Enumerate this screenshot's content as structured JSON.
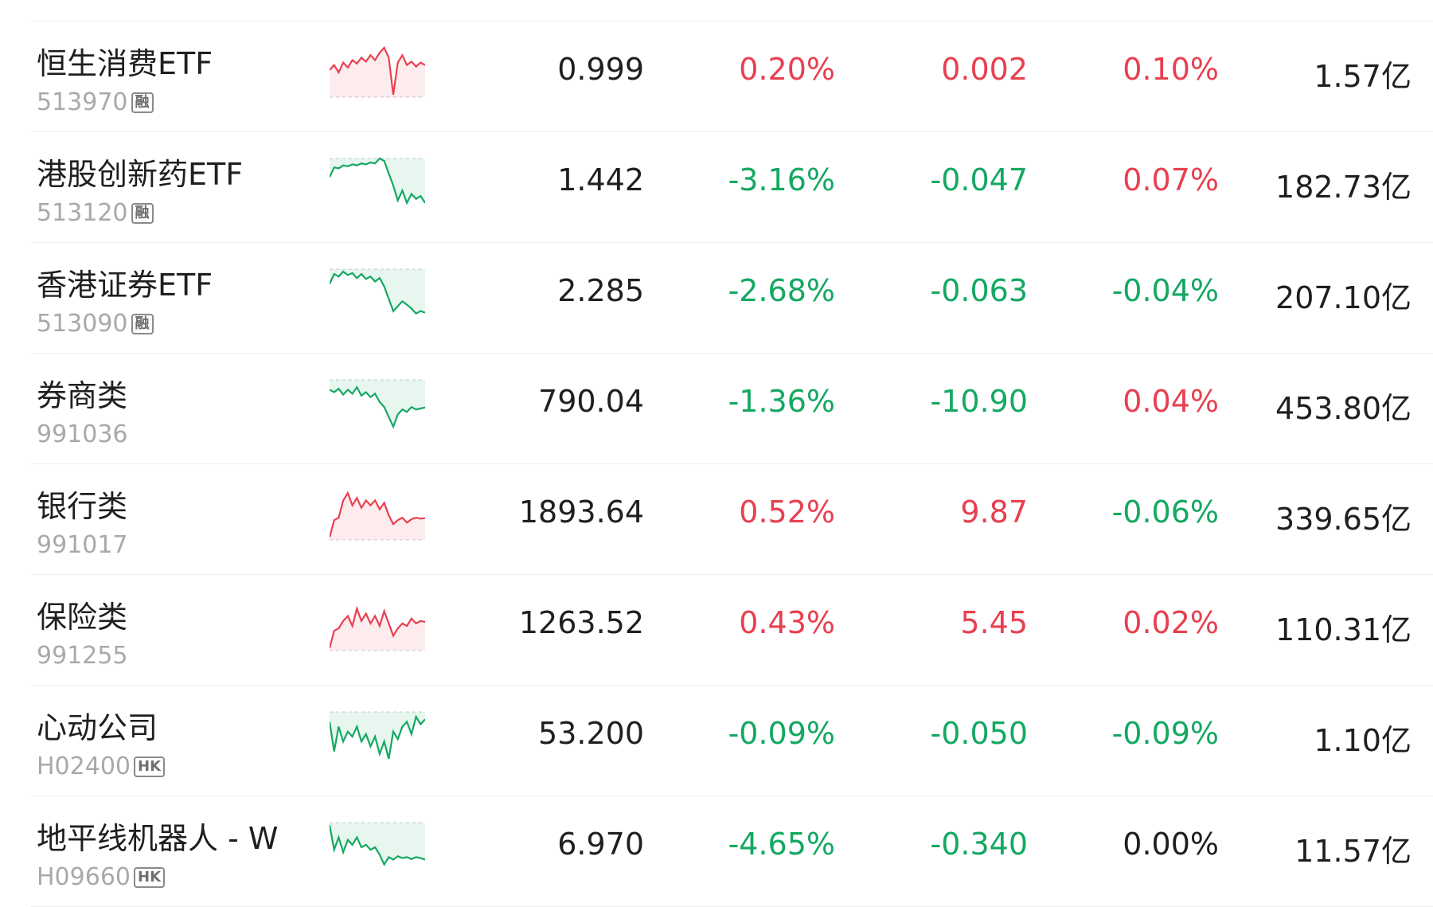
{
  "colors": {
    "up": "#e84050",
    "down": "#14a862",
    "neutral": "#1f1f1f",
    "subtext": "#a9a9a9"
  },
  "rows": [
    {
      "name": "恒生消费ETF",
      "code": "513970",
      "badge": "融",
      "price": "0.999",
      "change_pct": "0.20%",
      "change": "0.002",
      "speed": "0.10%",
      "amount": "1.57亿",
      "dir_pct": "up",
      "dir_chg": "up",
      "dir_spd": "up",
      "spark": {
        "trend": "up",
        "points": [
          0.45,
          0.35,
          0.5,
          0.3,
          0.4,
          0.25,
          0.32,
          0.2,
          0.28,
          0.15,
          0.25,
          0.1,
          0.0,
          0.2,
          0.95,
          0.3,
          0.15,
          0.35,
          0.28,
          0.38,
          0.3,
          0.35
        ]
      }
    },
    {
      "name": "港股创新药ETF",
      "code": "513120",
      "badge": "融",
      "price": "1.442",
      "change_pct": "-3.16%",
      "change": "-0.047",
      "speed": "0.07%",
      "amount": "182.73亿",
      "dir_pct": "down",
      "dir_chg": "down",
      "dir_spd": "up",
      "spark": {
        "trend": "down",
        "points": [
          0.38,
          0.18,
          0.2,
          0.14,
          0.16,
          0.12,
          0.14,
          0.1,
          0.12,
          0.08,
          0.1,
          0.0,
          0.05,
          0.3,
          0.55,
          0.85,
          0.65,
          0.9,
          0.72,
          0.82,
          0.76,
          0.9
        ]
      }
    },
    {
      "name": "香港证券ETF",
      "code": "513090",
      "badge": "融",
      "price": "2.285",
      "change_pct": "-2.68%",
      "change": "-0.063",
      "speed": "-0.04%",
      "amount": "207.10亿",
      "dir_pct": "down",
      "dir_chg": "down",
      "dir_spd": "down",
      "spark": {
        "trend": "down",
        "points": [
          0.3,
          0.1,
          0.15,
          0.05,
          0.12,
          0.08,
          0.18,
          0.1,
          0.2,
          0.15,
          0.25,
          0.18,
          0.35,
          0.6,
          0.85,
          0.75,
          0.65,
          0.72,
          0.8,
          0.9,
          0.85,
          0.88
        ]
      }
    },
    {
      "name": "券商类",
      "code": "991036",
      "badge": "",
      "price": "790.04",
      "change_pct": "-1.36%",
      "change": "-10.90",
      "speed": "0.04%",
      "amount": "453.80亿",
      "dir_pct": "down",
      "dir_chg": "down",
      "dir_spd": "up",
      "spark": {
        "trend": "down",
        "points": [
          0.2,
          0.25,
          0.18,
          0.3,
          0.2,
          0.28,
          0.15,
          0.32,
          0.25,
          0.35,
          0.28,
          0.45,
          0.55,
          0.75,
          0.95,
          0.7,
          0.6,
          0.65,
          0.55,
          0.6,
          0.58,
          0.56
        ]
      }
    },
    {
      "name": "银行类",
      "code": "991017",
      "badge": "",
      "price": "1893.64",
      "change_pct": "0.52%",
      "change": "9.87",
      "speed": "-0.06%",
      "amount": "339.65亿",
      "dir_pct": "up",
      "dir_chg": "up",
      "dir_spd": "down",
      "spark": {
        "trend": "up",
        "points": [
          0.95,
          0.6,
          0.55,
          0.2,
          0.05,
          0.3,
          0.15,
          0.35,
          0.2,
          0.3,
          0.2,
          0.38,
          0.25,
          0.5,
          0.68,
          0.6,
          0.55,
          0.65,
          0.58,
          0.55,
          0.57,
          0.56
        ]
      }
    },
    {
      "name": "保险类",
      "code": "991255",
      "badge": "",
      "price": "1263.52",
      "change_pct": "0.43%",
      "change": "5.45",
      "speed": "0.02%",
      "amount": "110.31亿",
      "dir_pct": "up",
      "dir_chg": "up",
      "dir_spd": "up",
      "spark": {
        "trend": "up",
        "points": [
          0.95,
          0.6,
          0.55,
          0.4,
          0.3,
          0.5,
          0.15,
          0.4,
          0.25,
          0.45,
          0.3,
          0.5,
          0.2,
          0.45,
          0.7,
          0.55,
          0.45,
          0.5,
          0.35,
          0.45,
          0.4,
          0.42
        ]
      }
    },
    {
      "name": "心动公司",
      "code": "H02400",
      "badge": "HK",
      "price": "53.200",
      "change_pct": "-0.09%",
      "change": "-0.050",
      "speed": "-0.09%",
      "amount": "1.10亿",
      "dir_pct": "down",
      "dir_chg": "down",
      "dir_spd": "down",
      "spark": {
        "trend": "down",
        "points": [
          0.2,
          0.8,
          0.3,
          0.6,
          0.4,
          0.5,
          0.3,
          0.6,
          0.45,
          0.7,
          0.5,
          0.85,
          0.6,
          0.95,
          0.4,
          0.55,
          0.3,
          0.2,
          0.45,
          0.1,
          0.25,
          0.15
        ]
      }
    },
    {
      "name": "地平线机器人 - W",
      "code": "H09660",
      "badge": "HK",
      "price": "6.970",
      "change_pct": "-4.65%",
      "change": "-0.340",
      "speed": "0.00%",
      "amount": "11.57亿",
      "dir_pct": "down",
      "dir_chg": "down",
      "dir_spd": "flat",
      "spark": {
        "trend": "down",
        "points": [
          0.05,
          0.55,
          0.3,
          0.6,
          0.35,
          0.45,
          0.3,
          0.5,
          0.45,
          0.55,
          0.5,
          0.65,
          0.85,
          0.7,
          0.75,
          0.68,
          0.72,
          0.7,
          0.74,
          0.7,
          0.72,
          0.75
        ]
      }
    }
  ]
}
